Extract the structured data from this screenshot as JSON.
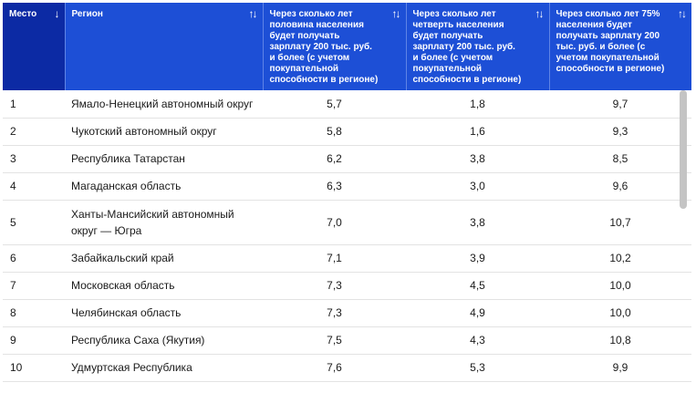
{
  "table": {
    "headers": [
      {
        "label": "Место",
        "sort_icon": "↓"
      },
      {
        "label": "Регион",
        "sort_icon": "↑↓"
      },
      {
        "label": "Через сколько лет половина населения будет получать зарплату 200 тыс. руб. и более (с учетом покупательной способности в регионе)",
        "sort_icon": "↑↓"
      },
      {
        "label": "Через сколько лет четверть населения будет получать зарплату 200 тыс. руб. и более (с учетом покупательной способности в регионе)",
        "sort_icon": "↑↓"
      },
      {
        "label": "Через сколько лет 75% населения будет получать зарплату 200 тыс. руб. и более (с учетом покупательной способности в регионе)",
        "sort_icon": "↑↓"
      }
    ],
    "rows": [
      {
        "place": "1",
        "region": "Ямало-Ненецкий автономный округ",
        "half": "5,7",
        "quarter": "1,8",
        "p75": "9,7"
      },
      {
        "place": "2",
        "region": "Чукотский автономный округ",
        "half": "5,8",
        "quarter": "1,6",
        "p75": "9,3"
      },
      {
        "place": "3",
        "region": "Республика Татарстан",
        "half": "6,2",
        "quarter": "3,8",
        "p75": "8,5"
      },
      {
        "place": "4",
        "region": "Магаданская область",
        "half": "6,3",
        "quarter": "3,0",
        "p75": "9,6"
      },
      {
        "place": "5",
        "region": "Ханты-Мансийский автономный округ — Югра",
        "half": "7,0",
        "quarter": "3,8",
        "p75": "10,7"
      },
      {
        "place": "6",
        "region": "Забайкальский край",
        "half": "7,1",
        "quarter": "3,9",
        "p75": "10,2"
      },
      {
        "place": "7",
        "region": "Московская область",
        "half": "7,3",
        "quarter": "4,5",
        "p75": "10,0"
      },
      {
        "place": "8",
        "region": "Челябинская область",
        "half": "7,3",
        "quarter": "4,9",
        "p75": "10,0"
      },
      {
        "place": "9",
        "region": "Республика Саха (Якутия)",
        "half": "7,5",
        "quarter": "4,3",
        "p75": "10,8"
      },
      {
        "place": "10",
        "region": "Удмуртская Республика",
        "half": "7,6",
        "quarter": "5,3",
        "p75": "9,9"
      }
    ]
  },
  "colors": {
    "header_bg": "#1d4fd6",
    "header_first_bg": "#0c2aa4",
    "scrollbar": "#c4c4c4"
  }
}
